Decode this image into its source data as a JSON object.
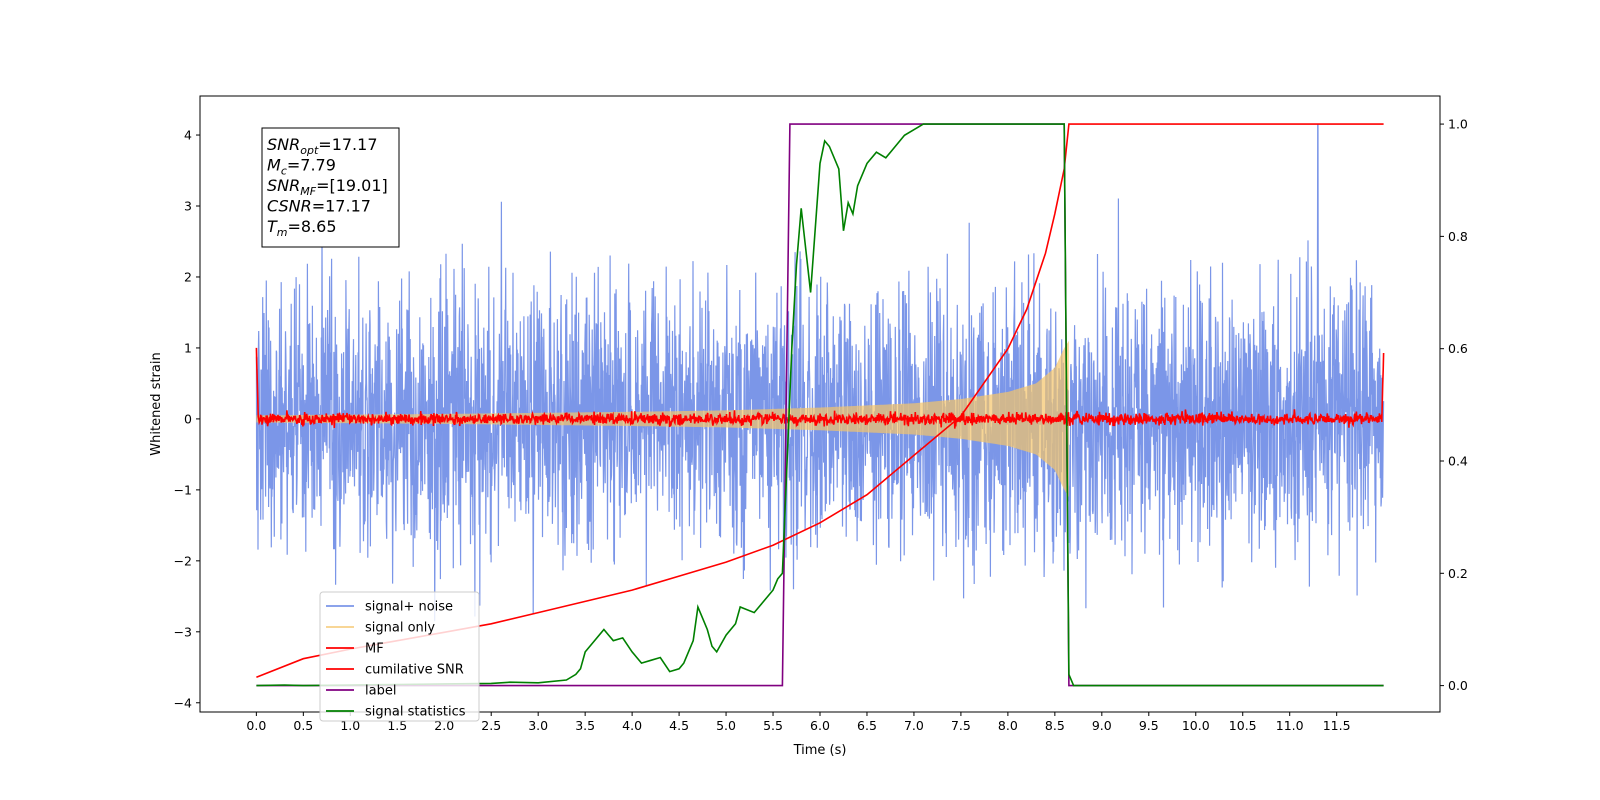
{
  "chart_data": {
    "type": "line",
    "title": "",
    "xlabel": "Time (s)",
    "ylabel": "Whitened strain",
    "y2label": "",
    "xlim": [
      -0.6,
      12.6
    ],
    "ylim": [
      -4.13,
      4.55
    ],
    "y2lim": [
      -0.047,
      1.05
    ],
    "x_ticks": [
      "0.0",
      "0.5",
      "1.0",
      "1.5",
      "2.0",
      "2.5",
      "3.0",
      "3.5",
      "4.0",
      "4.5",
      "5.0",
      "5.5",
      "6.0",
      "6.5",
      "7.0",
      "7.5",
      "8.0",
      "8.5",
      "9.0",
      "9.5",
      "10.0",
      "10.5",
      "11.0",
      "11.5"
    ],
    "y_ticks": [
      "−4",
      "−3",
      "−2",
      "−1",
      "0",
      "1",
      "2",
      "3",
      "4"
    ],
    "y2_ticks": [
      "0.0",
      "0.2",
      "0.4",
      "0.6",
      "0.8",
      "1.0"
    ],
    "grid": false,
    "legend_position": "lower-left",
    "annotation": {
      "lines": [
        {
          "base": "SNR",
          "sub": "opt",
          "value": "=17.17"
        },
        {
          "base": "M",
          "sub": "c",
          "value": "=7.79"
        },
        {
          "base": "SNR",
          "sub": "MF",
          "value": "=[19.01]"
        },
        {
          "base": "CSNR",
          "sub": "",
          "value": "=17.17"
        },
        {
          "base": "T",
          "sub": "m",
          "value": "=8.65"
        }
      ]
    },
    "series": [
      {
        "name": "signal+ noise",
        "color": "#7b96e8",
        "axis": "left",
        "kind": "noise",
        "x_range": [
          0,
          12.0
        ],
        "amplitude_typical": 1.2,
        "amplitude_max": 4.15
      },
      {
        "name": "signal only",
        "color": "#f5c56a",
        "axis": "left",
        "kind": "chirp",
        "x_range": [
          0,
          8.65
        ],
        "envelope_x": [
          0,
          2.0,
          4.0,
          5.0,
          6.0,
          7.0,
          7.5,
          8.0,
          8.3,
          8.5,
          8.6,
          8.65
        ],
        "envelope_y": [
          0.05,
          0.07,
          0.1,
          0.12,
          0.16,
          0.22,
          0.28,
          0.38,
          0.5,
          0.72,
          1.0,
          1.1
        ]
      },
      {
        "name": "MF",
        "color": "#ff0000",
        "axis": "left",
        "kind": "noise",
        "x_range": [
          0,
          12.0
        ],
        "amplitude_typical": 0.05,
        "edge_values": [
          1.0,
          0.95
        ]
      },
      {
        "name": "cumilative SNR",
        "color": "#ff0000",
        "axis": "right",
        "x": [
          0,
          0.5,
          1.0,
          1.5,
          2.0,
          2.5,
          3.0,
          3.5,
          4.0,
          4.5,
          5.0,
          5.5,
          6.0,
          6.5,
          7.0,
          7.5,
          8.0,
          8.2,
          8.4,
          8.5,
          8.6,
          8.65,
          8.66,
          12.0
        ],
        "y": [
          0.015,
          0.048,
          0.065,
          0.08,
          0.095,
          0.11,
          0.13,
          0.15,
          0.17,
          0.195,
          0.22,
          0.25,
          0.29,
          0.34,
          0.41,
          0.48,
          0.6,
          0.67,
          0.77,
          0.84,
          0.92,
          1.0,
          1.0,
          1.0
        ]
      },
      {
        "name": "label",
        "color": "#800080",
        "axis": "right",
        "x": [
          0,
          5.6,
          5.68,
          8.6,
          8.65,
          12.0
        ],
        "y": [
          0,
          0,
          1,
          1,
          0,
          0
        ]
      },
      {
        "name": "signal statistics",
        "color": "#008000",
        "axis": "right",
        "x": [
          0,
          0.3,
          0.5,
          1.0,
          1.5,
          2.0,
          2.5,
          2.7,
          3.0,
          3.3,
          3.4,
          3.45,
          3.5,
          3.6,
          3.7,
          3.75,
          3.8,
          3.9,
          4.0,
          4.1,
          4.2,
          4.3,
          4.4,
          4.5,
          4.55,
          4.65,
          4.7,
          4.75,
          4.8,
          4.85,
          4.9,
          5.0,
          5.1,
          5.15,
          5.3,
          5.4,
          5.5,
          5.55,
          5.6,
          5.65,
          5.7,
          5.75,
          5.8,
          5.9,
          6.0,
          6.05,
          6.1,
          6.2,
          6.25,
          6.3,
          6.35,
          6.4,
          6.5,
          6.6,
          6.7,
          6.8,
          6.9,
          7.0,
          7.1,
          7.2,
          7.5,
          8.0,
          8.6,
          8.65,
          8.7,
          8.9,
          12.0
        ],
        "y": [
          0.0,
          0.001,
          0.0,
          0.001,
          0.002,
          0.003,
          0.004,
          0.006,
          0.005,
          0.01,
          0.02,
          0.03,
          0.06,
          0.08,
          0.1,
          0.09,
          0.08,
          0.085,
          0.06,
          0.04,
          0.045,
          0.05,
          0.025,
          0.03,
          0.04,
          0.08,
          0.14,
          0.12,
          0.1,
          0.07,
          0.06,
          0.09,
          0.11,
          0.14,
          0.13,
          0.15,
          0.17,
          0.19,
          0.2,
          0.4,
          0.6,
          0.75,
          0.85,
          0.7,
          0.93,
          0.97,
          0.96,
          0.92,
          0.81,
          0.86,
          0.84,
          0.89,
          0.93,
          0.95,
          0.94,
          0.96,
          0.98,
          0.99,
          1.0,
          1.0,
          1.0,
          1.0,
          1.0,
          0.02,
          0.0,
          0.0,
          0.0
        ]
      }
    ]
  }
}
